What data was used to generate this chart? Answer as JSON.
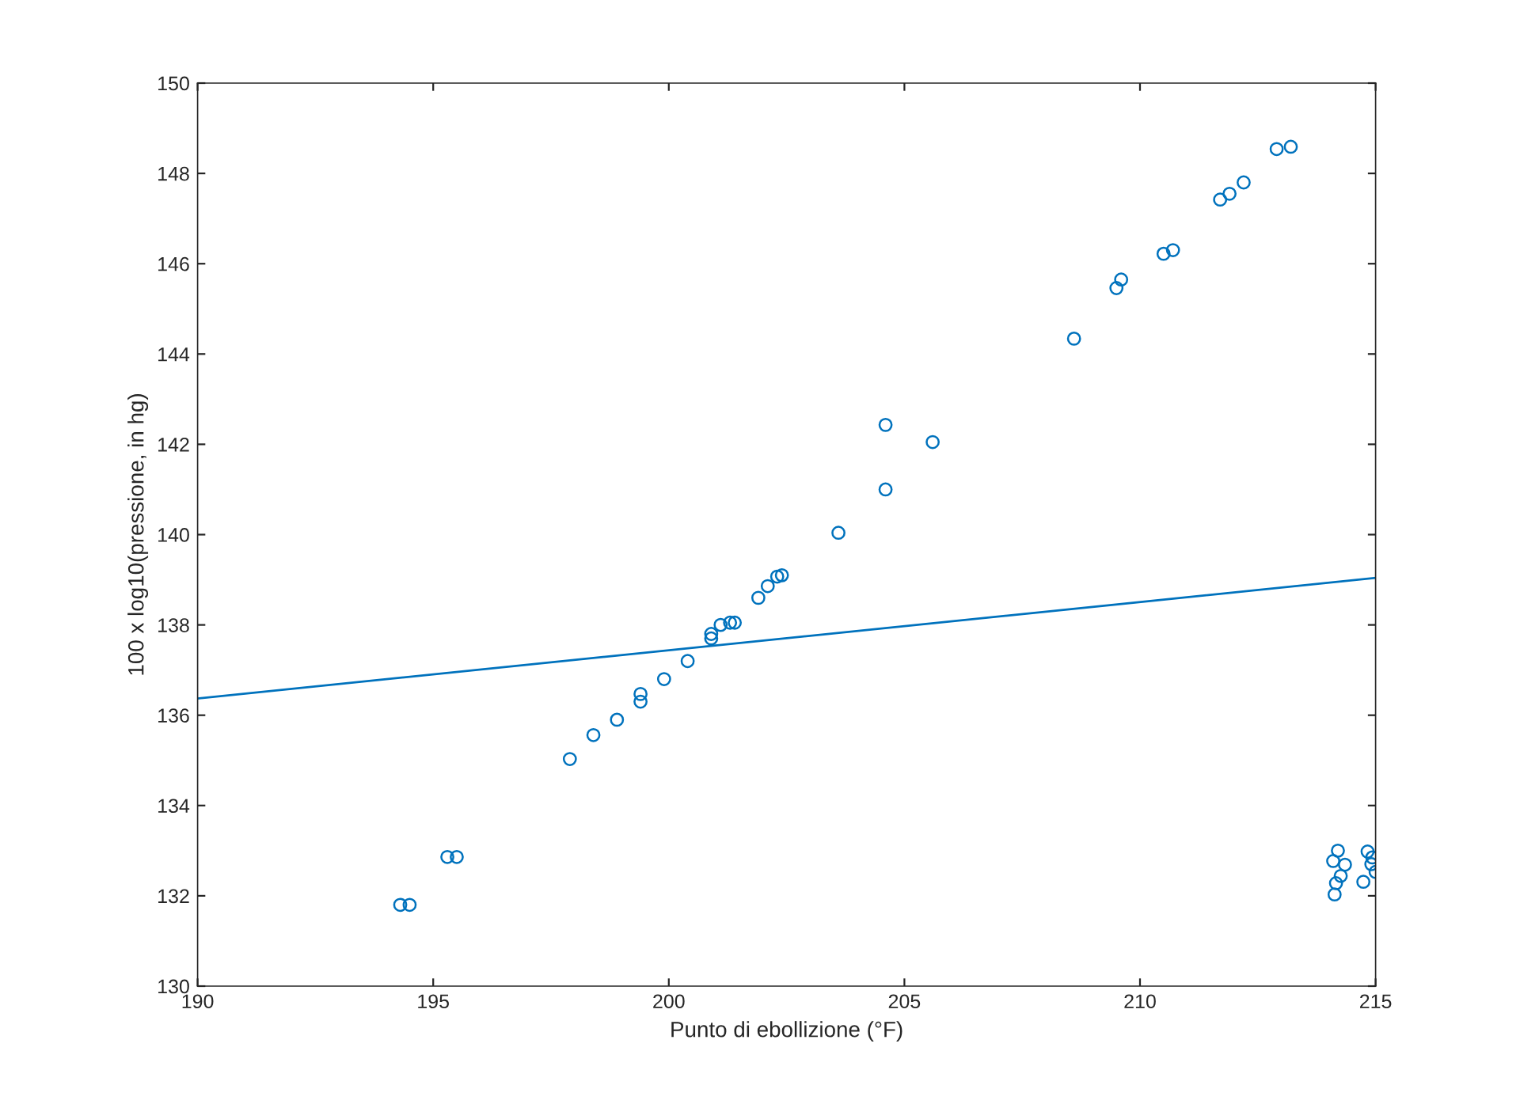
{
  "chart_data": {
    "type": "scatter",
    "xlabel": "Punto di ebollizione (°F)",
    "ylabel": "100 x log10(pressione, in hg)",
    "xlim": [
      190,
      215
    ],
    "ylim": [
      130,
      150
    ],
    "xticks": [
      190,
      195,
      200,
      205,
      210,
      215
    ],
    "yticks": [
      130,
      132,
      134,
      136,
      138,
      140,
      142,
      144,
      146,
      148,
      150
    ],
    "grid": false,
    "legend": false,
    "series": [
      {
        "marker": "circle",
        "color": "#0072bd",
        "x": [
          194.3,
          194.5,
          195.3,
          195.5,
          197.9,
          198.4,
          198.9,
          199.4,
          199.4,
          199.9,
          200.4,
          200.9,
          200.9,
          201.1,
          201.3,
          201.4,
          201.9,
          202.1,
          202.3,
          202.4,
          203.6,
          204.6,
          204.6,
          205.6,
          208.6,
          209.5,
          209.6,
          210.5,
          210.7,
          211.7,
          211.9,
          212.2,
          212.9,
          213.2,
          214.2,
          214.1,
          214.35,
          214.26,
          214.16,
          214.13,
          214.83,
          214.93,
          214.91,
          215.0,
          214.74
        ],
        "values": [
          131.8,
          131.8,
          132.86,
          132.86,
          135.03,
          135.56,
          135.9,
          136.47,
          136.3,
          136.8,
          137.2,
          137.8,
          137.7,
          138.0,
          138.05,
          138.05,
          138.6,
          138.86,
          139.07,
          139.1,
          140.04,
          142.43,
          141.0,
          142.05,
          144.34,
          145.46,
          145.65,
          146.22,
          146.3,
          147.42,
          147.55,
          147.8,
          148.54,
          148.59,
          133.0,
          132.77,
          132.69,
          132.44,
          132.28,
          132.03,
          132.98,
          132.85,
          132.7,
          132.53,
          132.31
        ]
      },
      {
        "type": "line",
        "color": "#0072bd",
        "x": [
          190,
          215
        ],
        "values": [
          136.37,
          139.04
        ],
        "line_style": "solid"
      }
    ]
  }
}
